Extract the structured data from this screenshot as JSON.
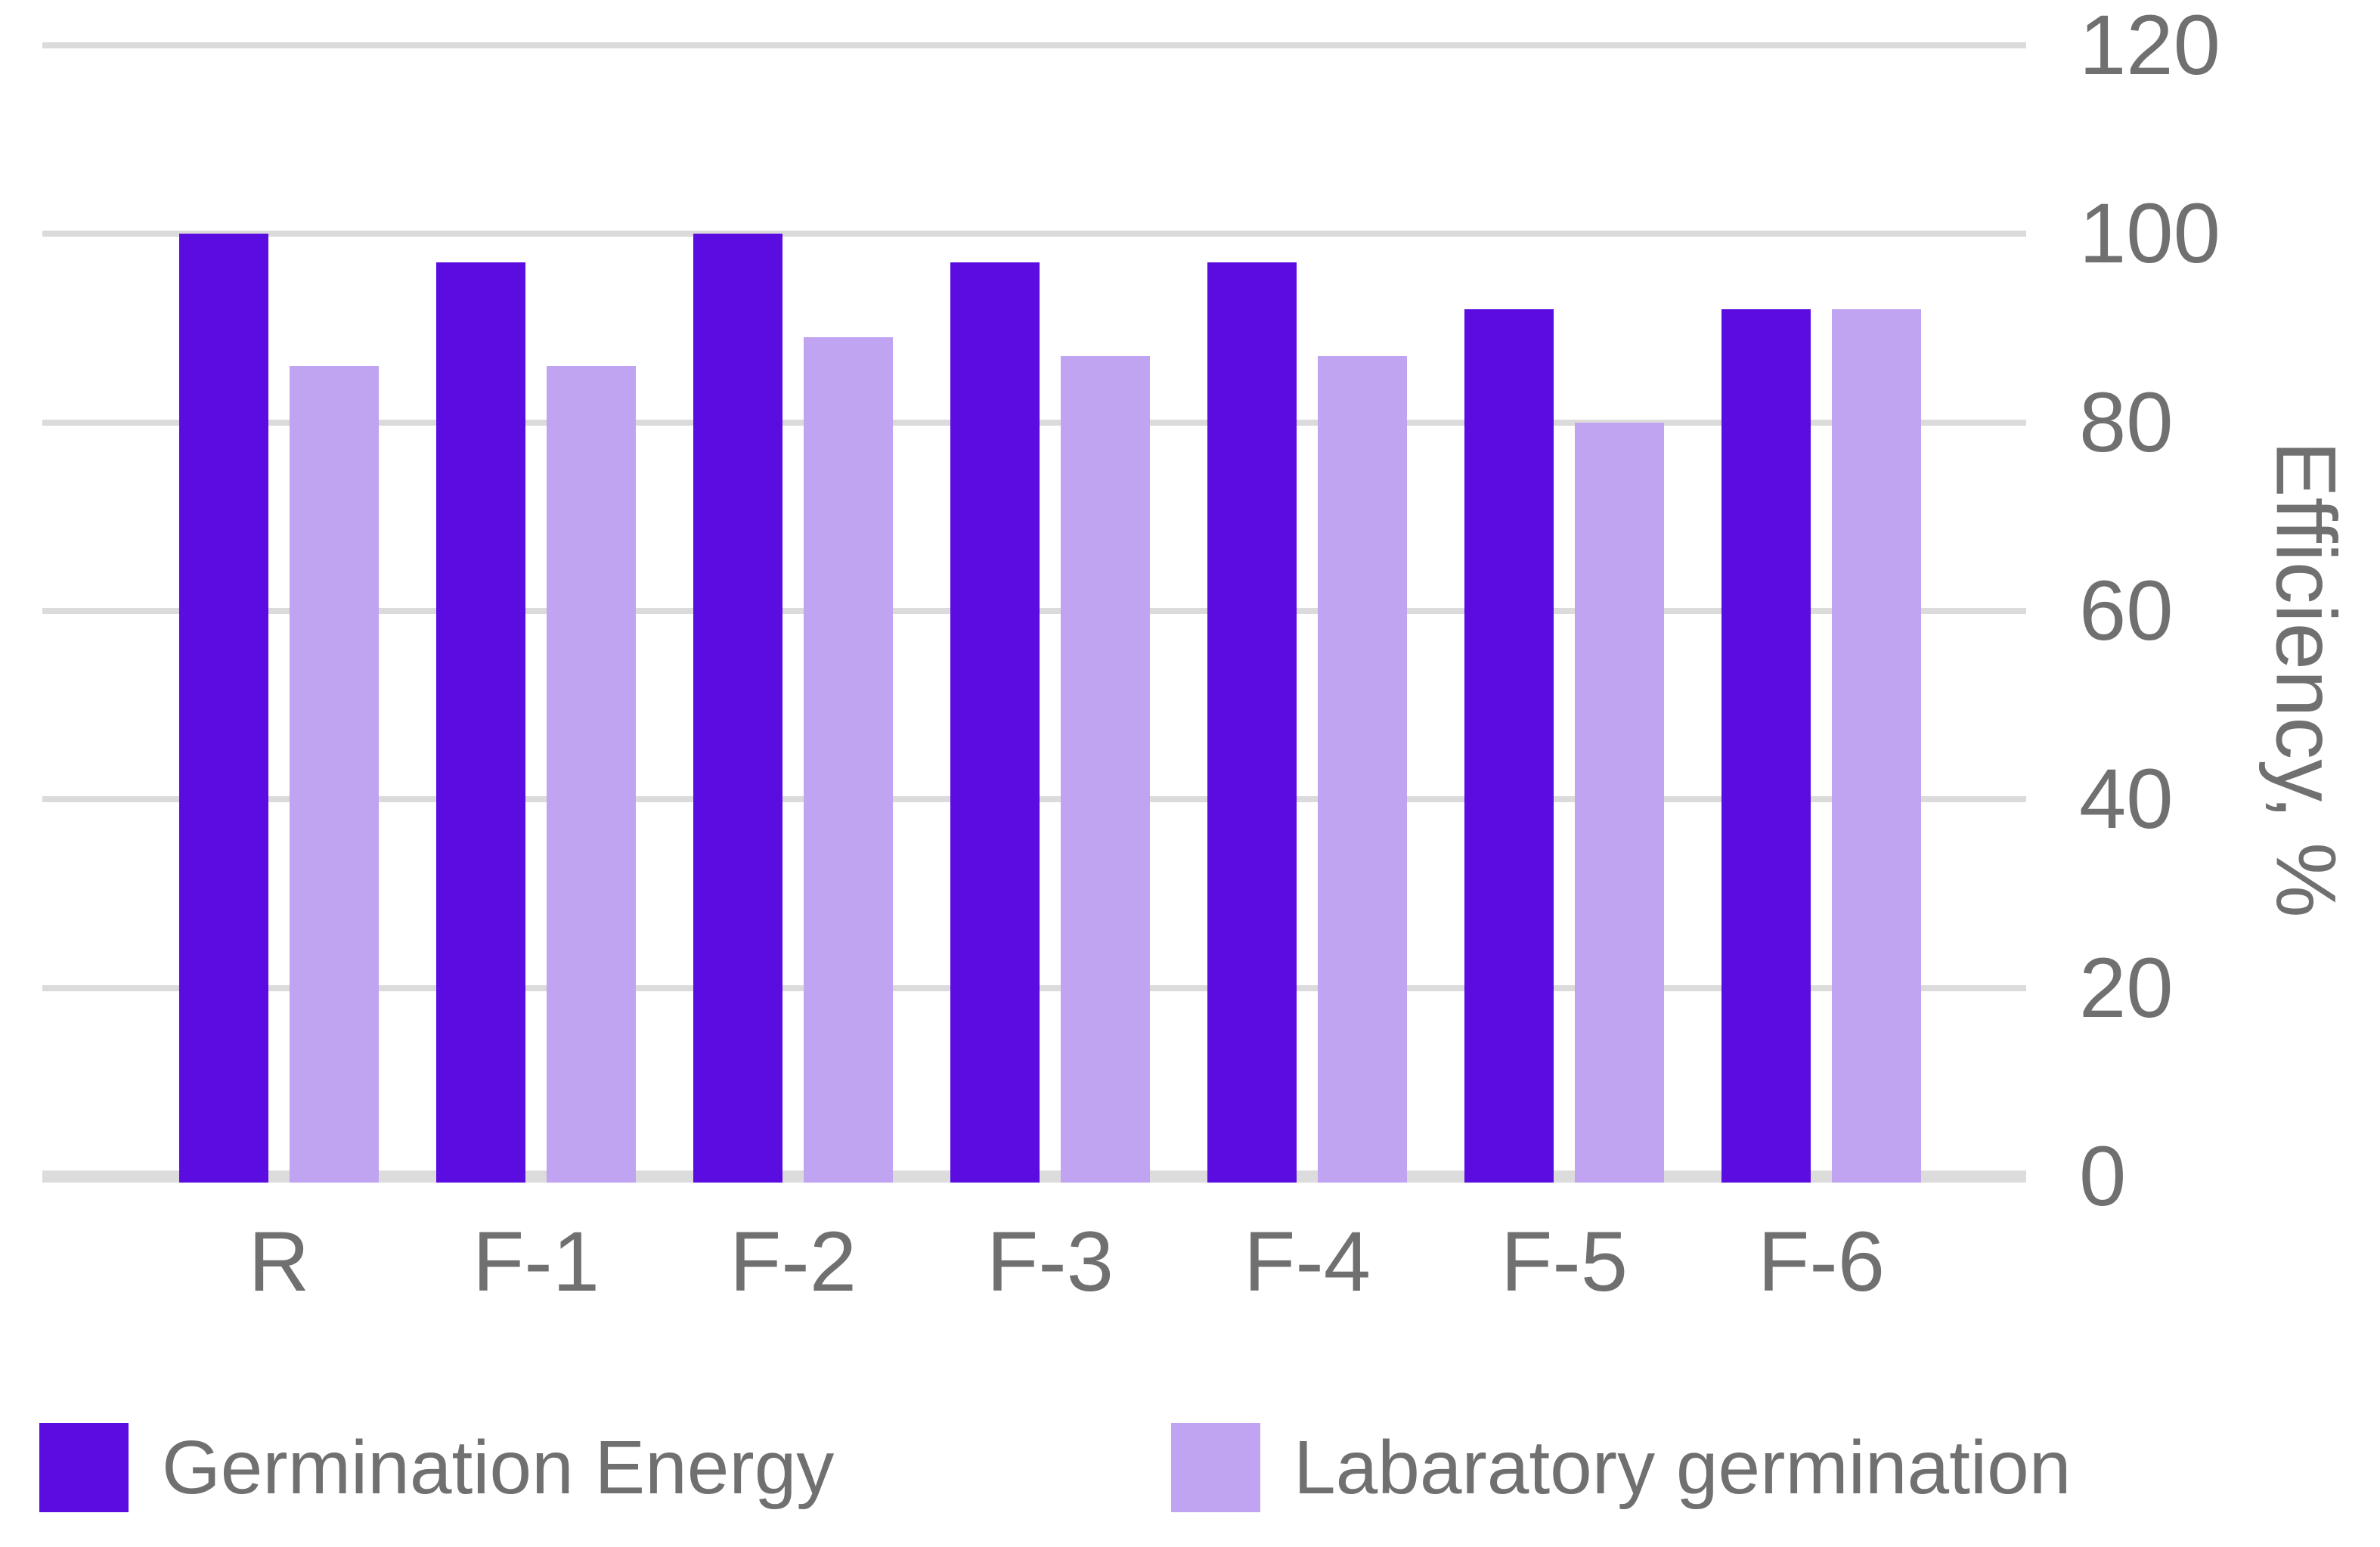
{
  "chart_data": {
    "type": "bar",
    "title": "",
    "categories": [
      "R",
      "F-1",
      "F-2",
      "F-3",
      "F-4",
      "F-5",
      "F-6"
    ],
    "series": [
      {
        "name": "Germination Energy",
        "color": "#5A0CE1",
        "values": [
          100,
          97,
          100,
          97,
          97,
          92,
          92
        ]
      },
      {
        "name": "Labaratory germination",
        "color": "#C0A3F1",
        "values": [
          86,
          86,
          89,
          87,
          87,
          80,
          92
        ]
      }
    ],
    "ylabel": "Efficiency, %",
    "ylim": [
      0,
      120
    ],
    "yticks": [
      0,
      20,
      40,
      60,
      80,
      100,
      120
    ],
    "grid": true,
    "y_axis_side": "right",
    "legend_position": "bottom",
    "background_color": "#FFFFFF",
    "grid_color": "#DBDBDB",
    "text_color": "#707070"
  }
}
